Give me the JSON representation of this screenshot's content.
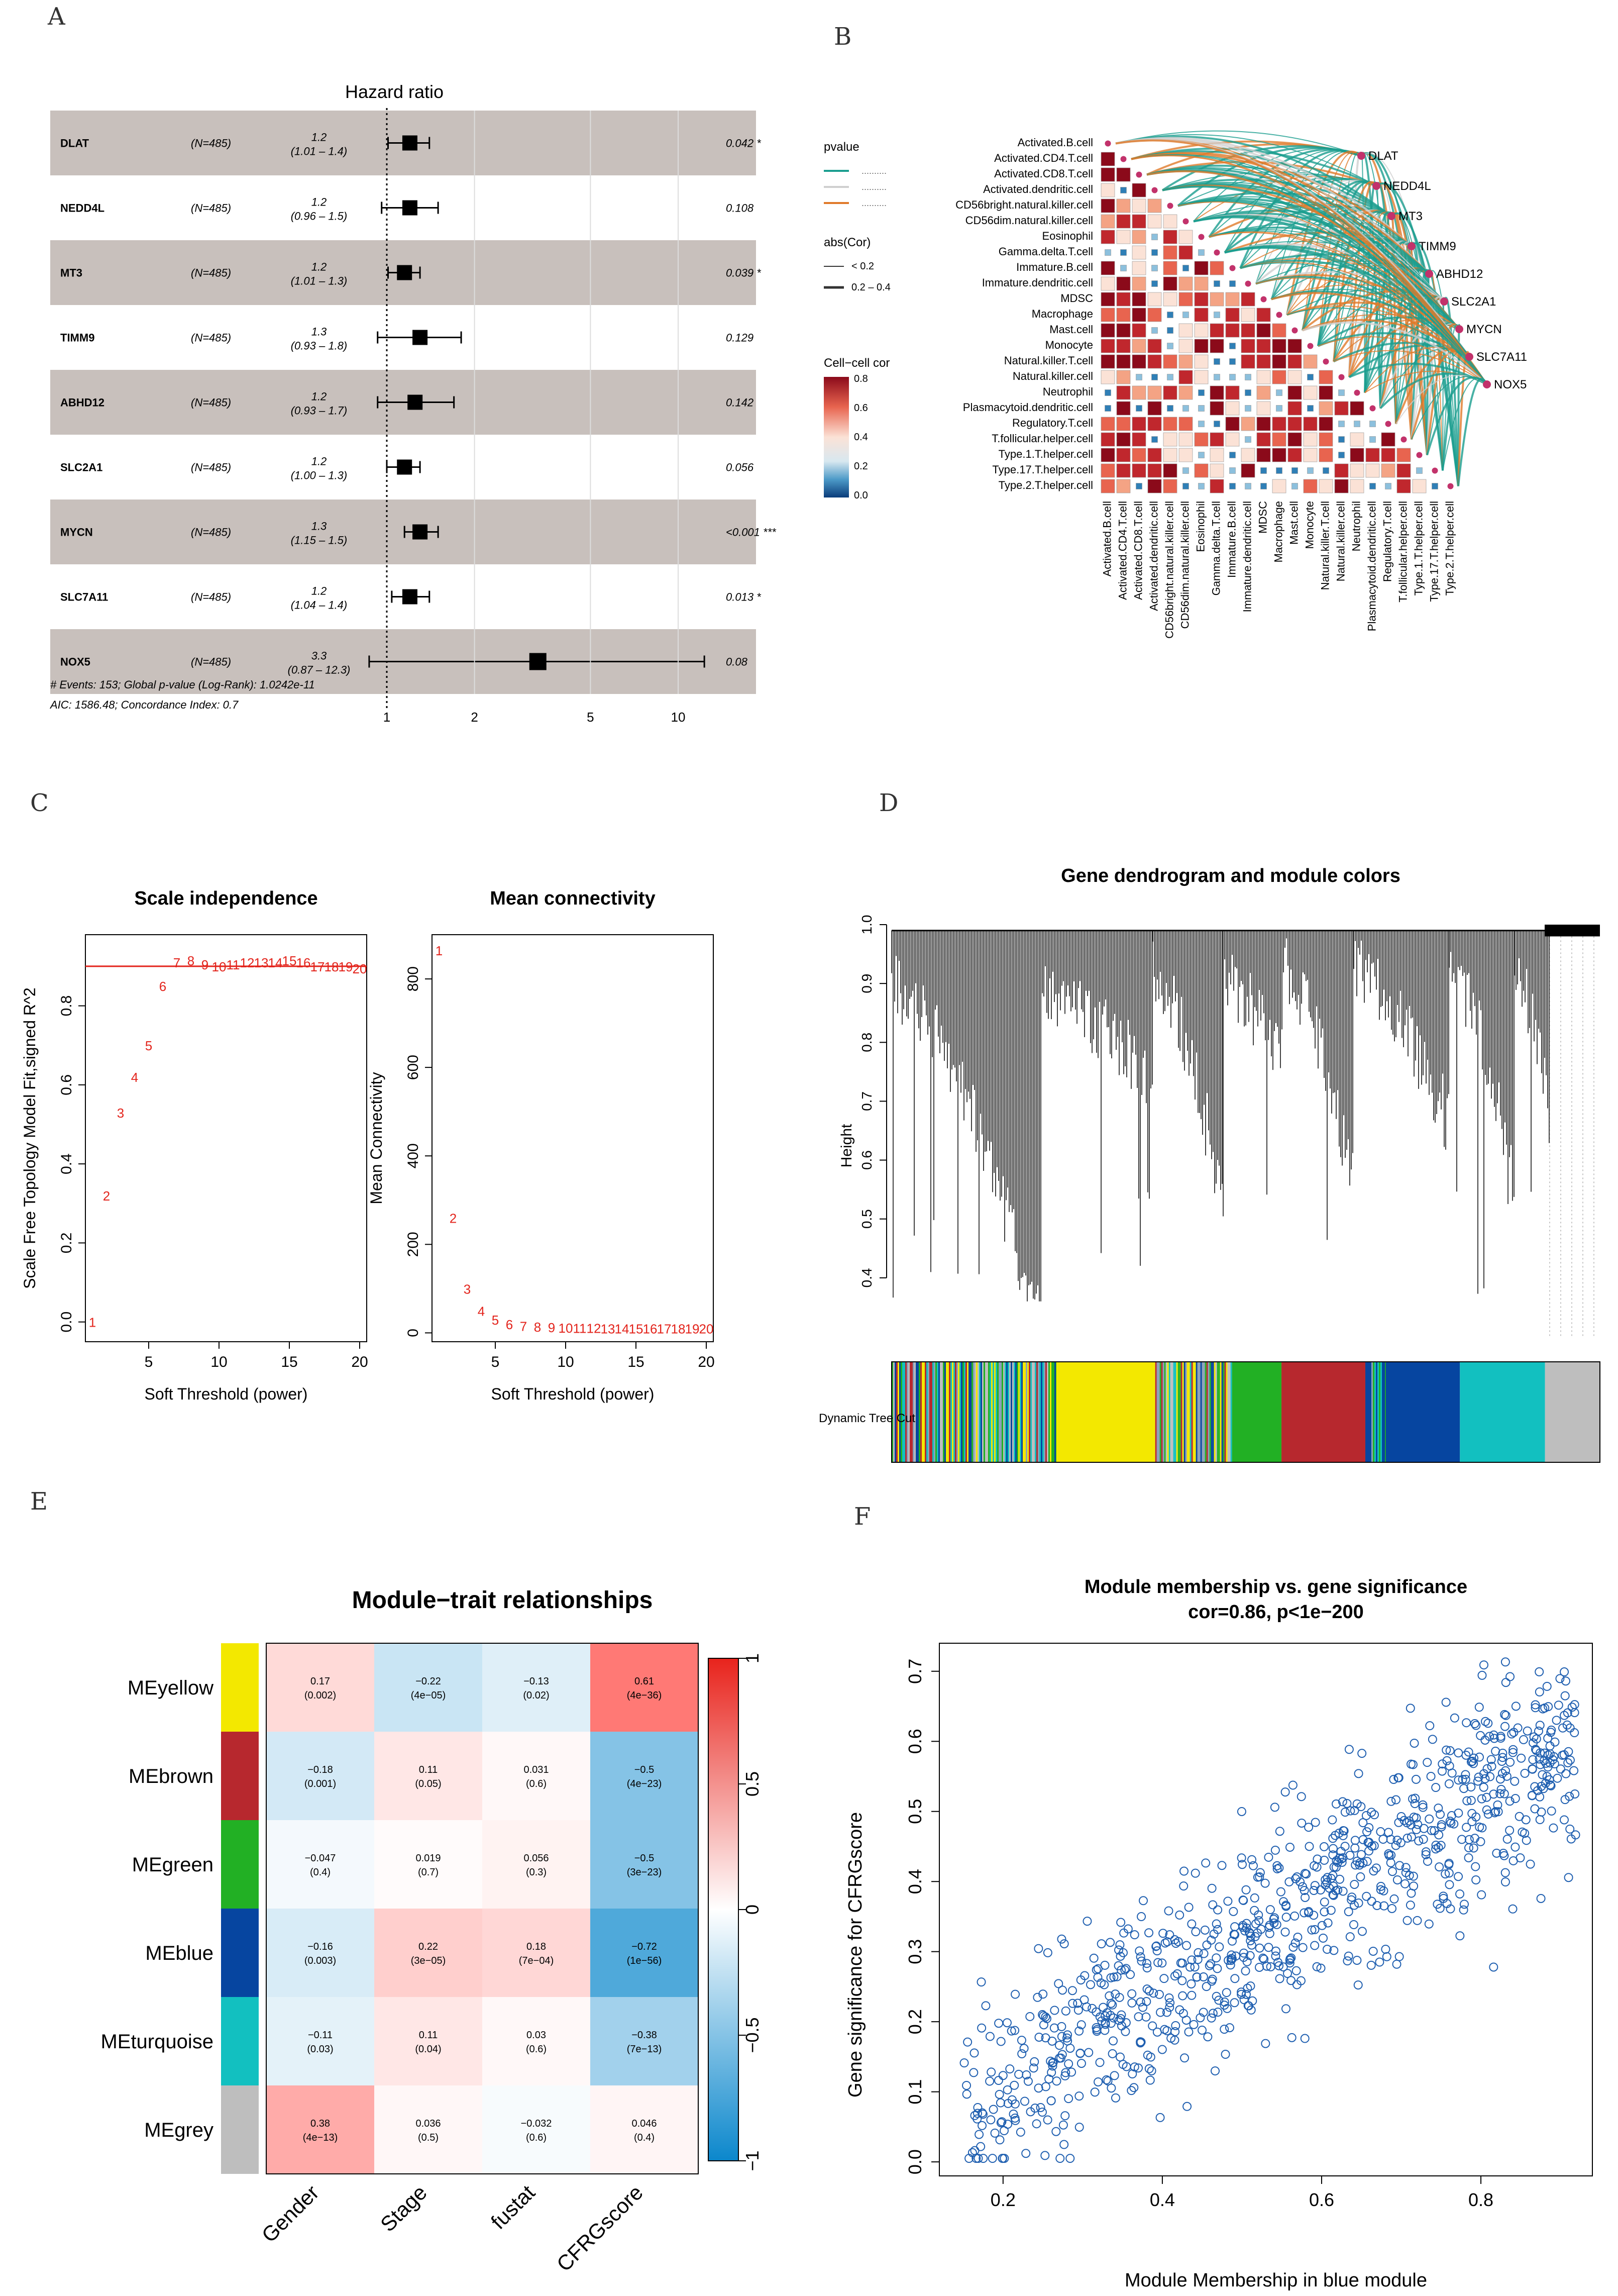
{
  "panel_labels": {
    "a": "A",
    "b": "B",
    "c": "C",
    "d": "D",
    "e": "E",
    "f": "F"
  },
  "chart_data": [
    {
      "id": "A",
      "type": "forest",
      "title": "Hazard ratio",
      "rows": [
        {
          "gene": "DLAT",
          "n": "(N=485)",
          "hr": "1.2",
          "ci": "(1.01 – 1.4)",
          "p": "0.042 *",
          "est": 1.2,
          "lo": 1.01,
          "hi": 1.4
        },
        {
          "gene": "NEDD4L",
          "n": "(N=485)",
          "hr": "1.2",
          "ci": "(0.96 – 1.5)",
          "p": "0.108",
          "est": 1.2,
          "lo": 0.96,
          "hi": 1.5
        },
        {
          "gene": "MT3",
          "n": "(N=485)",
          "hr": "1.2",
          "ci": "(1.01 – 1.3)",
          "p": "0.039 *",
          "est": 1.15,
          "lo": 1.01,
          "hi": 1.3
        },
        {
          "gene": "TIMM9",
          "n": "(N=485)",
          "hr": "1.3",
          "ci": "(0.93 – 1.8)",
          "p": "0.129",
          "est": 1.3,
          "lo": 0.93,
          "hi": 1.8
        },
        {
          "gene": "ABHD12",
          "n": "(N=485)",
          "hr": "1.2",
          "ci": "(0.93 – 1.7)",
          "p": "0.142",
          "est": 1.25,
          "lo": 0.93,
          "hi": 1.7
        },
        {
          "gene": "SLC2A1",
          "n": "(N=485)",
          "hr": "1.2",
          "ci": "(1.00 – 1.3)",
          "p": "0.056",
          "est": 1.15,
          "lo": 1.0,
          "hi": 1.3
        },
        {
          "gene": "MYCN",
          "n": "(N=485)",
          "hr": "1.3",
          "ci": "(1.15 – 1.5)",
          "p": "<0.001 ***",
          "est": 1.3,
          "lo": 1.15,
          "hi": 1.5
        },
        {
          "gene": "SLC7A11",
          "n": "(N=485)",
          "hr": "1.2",
          "ci": "(1.04 – 1.4)",
          "p": "0.013 *",
          "est": 1.2,
          "lo": 1.04,
          "hi": 1.4
        },
        {
          "gene": "NOX5",
          "n": "(N=485)",
          "hr": "3.3",
          "ci": "(0.87 – 12.3)",
          "p": "0.08",
          "est": 3.3,
          "lo": 0.87,
          "hi": 12.3
        }
      ],
      "x_ticks": [
        1,
        2,
        5,
        10
      ],
      "footnote1": "# Events: 153; Global p-value (Log-Rank): 1.0242e-11",
      "footnote2": "AIC: 1586.48; Concordance Index: 0.7",
      "colors": {
        "band": "#c8c0bc",
        "box": "#000000"
      }
    },
    {
      "id": "B",
      "type": "correlation-network",
      "cells": [
        "Activated.B.cell",
        "Activated.CD4.T.cell",
        "Activated.CD8.T.cell",
        "Activated.dendritic.cell",
        "CD56bright.natural.killer.cell",
        "CD56dim.natural.killer.cell",
        "Eosinophil",
        "Gamma.delta.T.cell",
        "Immature.B.cell",
        "Immature.dendritic.cell",
        "MDSC",
        "Macrophage",
        "Mast.cell",
        "Monocyte",
        "Natural.killer.T.cell",
        "Natural.killer.cell",
        "Neutrophil",
        "Plasmacytoid.dendritic.cell",
        "Regulatory.T.cell",
        "T.follicular.helper.cell",
        "Type.1.T.helper.cell",
        "Type.17.T.helper.cell",
        "Type.2.T.helper.cell"
      ],
      "genes": [
        "DLAT",
        "NEDD4L",
        "MT3",
        "TIMM9",
        "ABHD12",
        "SLC2A1",
        "MYCN",
        "SLC7A11",
        "NOX5"
      ],
      "legend_pvalue_title": "pvalue",
      "legend_pvalue_items": [
        "..........",
        "..........",
        ".........."
      ],
      "legend_abs_title": "abs(Cor)",
      "legend_abs_items": [
        "< 0.2",
        "0.2 – 0.4"
      ],
      "legend_color_title": "Cell−cell cor",
      "legend_color_ticks": [
        "0.8",
        "0.6",
        "0.4",
        "0.2",
        "0.0"
      ],
      "colors": {
        "teal": "#1a9e8f",
        "orange": "#e07a2a",
        "grey": "#cfcfcf",
        "node": "#c2326b"
      }
    },
    {
      "id": "C1",
      "type": "scatter-text",
      "title": "Scale independence",
      "xlabel": "Soft Threshold (power)",
      "ylabel": "Scale Free Topology Model Fit,signed R^2",
      "x": [
        1,
        2,
        3,
        4,
        5,
        6,
        7,
        8,
        9,
        10,
        11,
        12,
        13,
        14,
        15,
        16,
        17,
        18,
        19,
        20
      ],
      "y": [
        0.0,
        0.32,
        0.53,
        0.62,
        0.7,
        0.85,
        0.91,
        0.915,
        0.905,
        0.9,
        0.905,
        0.91,
        0.91,
        0.91,
        0.915,
        0.91,
        0.9,
        0.9,
        0.9,
        0.895
      ],
      "xlim": [
        0.5,
        20.5
      ],
      "ylim": [
        -0.05,
        0.98
      ],
      "xticks": [
        5,
        10,
        15,
        20
      ],
      "yticks": [
        "0.0",
        "0.2",
        "0.4",
        "0.6",
        "0.8"
      ],
      "hline": 0.9
    },
    {
      "id": "C2",
      "type": "scatter-text",
      "title": "Mean connectivity",
      "xlabel": "Soft Threshold (power)",
      "ylabel": "Mean Connectivity",
      "x": [
        1,
        2,
        3,
        4,
        5,
        6,
        7,
        8,
        9,
        10,
        11,
        12,
        13,
        14,
        15,
        16,
        17,
        18,
        19,
        20
      ],
      "y": [
        865,
        260,
        100,
        50,
        30,
        20,
        16,
        14,
        13,
        12,
        11,
        11,
        10,
        10,
        10,
        10,
        10,
        10,
        10,
        10
      ],
      "xlim": [
        0.5,
        20.5
      ],
      "ylim": [
        -20,
        900
      ],
      "xticks": [
        5,
        10,
        15,
        20
      ],
      "yticks": [
        "0",
        "200",
        "400",
        "600",
        "800"
      ]
    },
    {
      "id": "D",
      "type": "dendrogram",
      "title": "Gene dendrogram and module colors",
      "ylabel": "Height",
      "yticks": [
        "0.4",
        "0.5",
        "0.6",
        "0.7",
        "0.8",
        "0.9",
        "1.0"
      ],
      "colorbar_label": "Dynamic Tree Cut",
      "modules": [
        "yellow",
        "brown",
        "green",
        "blue",
        "turquoise",
        "grey"
      ]
    },
    {
      "id": "E",
      "type": "heatmap",
      "title": "Module−trait relationships",
      "rows": [
        "MEyellow",
        "MEbrown",
        "MEgreen",
        "MEblue",
        "MEturquoise",
        "MEgrey"
      ],
      "row_colors": [
        "#f3e800",
        "#b7282e",
        "#22b024",
        "#0645a0",
        "#12c0c0",
        "#bebebe"
      ],
      "cols": [
        "Gender",
        "Stage",
        "fustat",
        "CFRGscore"
      ],
      "cor": [
        [
          0.17,
          -0.22,
          -0.13,
          0.61
        ],
        [
          -0.18,
          0.11,
          0.031,
          -0.5
        ],
        [
          -0.047,
          0.019,
          0.056,
          -0.5
        ],
        [
          -0.16,
          0.22,
          0.18,
          -0.72
        ],
        [
          -0.11,
          0.11,
          0.03,
          -0.38
        ],
        [
          0.38,
          0.036,
          -0.032,
          0.046
        ]
      ],
      "cells": [
        [
          "0.17\n(0.002)",
          "−0.22\n(4e−05)",
          "−0.13\n(0.02)",
          "0.61\n(4e−36)"
        ],
        [
          "−0.18\n(0.001)",
          "0.11\n(0.05)",
          "0.031\n(0.6)",
          "−0.5\n(4e−23)"
        ],
        [
          "−0.047\n(0.4)",
          "0.019\n(0.7)",
          "0.056\n(0.3)",
          "−0.5\n(3e−23)"
        ],
        [
          "−0.16\n(0.003)",
          "0.22\n(3e−05)",
          "0.18\n(7e−04)",
          "−0.72\n(1e−56)"
        ],
        [
          "−0.11\n(0.03)",
          "0.11\n(0.04)",
          "0.03\n(0.6)",
          "−0.38\n(7e−13)"
        ],
        [
          "0.38\n(4e−13)",
          "0.036\n(0.5)",
          "−0.032\n(0.6)",
          "0.046\n(0.4)"
        ]
      ],
      "legend_ticks": [
        "1",
        "0.5",
        "0",
        "−0.5",
        "−1"
      ],
      "legend_values": [
        1,
        0.5,
        0,
        -0.5,
        -1
      ]
    },
    {
      "id": "F",
      "type": "scatter",
      "title": "Module membership vs. gene significance",
      "subtitle": "cor=0.86, p<1e−200",
      "xlabel": "Module Membership in blue module",
      "ylabel": "Gene significance for CFRGscore",
      "xlim": [
        0.12,
        0.94
      ],
      "ylim": [
        -0.02,
        0.74
      ],
      "xticks": [
        "0.2",
        "0.4",
        "0.6",
        "0.8"
      ],
      "xtick_values": [
        0.2,
        0.4,
        0.6,
        0.8
      ],
      "yticks": [
        "0.0",
        "0.1",
        "0.2",
        "0.3",
        "0.4",
        "0.5",
        "0.6",
        "0.7"
      ],
      "ytick_values": [
        0,
        0.1,
        0.2,
        0.3,
        0.4,
        0.5,
        0.6,
        0.7
      ],
      "n_points": 900,
      "trend": {
        "slope": 0.68,
        "intercept": -0.03
      },
      "point_color": "#1f5fb0"
    }
  ]
}
